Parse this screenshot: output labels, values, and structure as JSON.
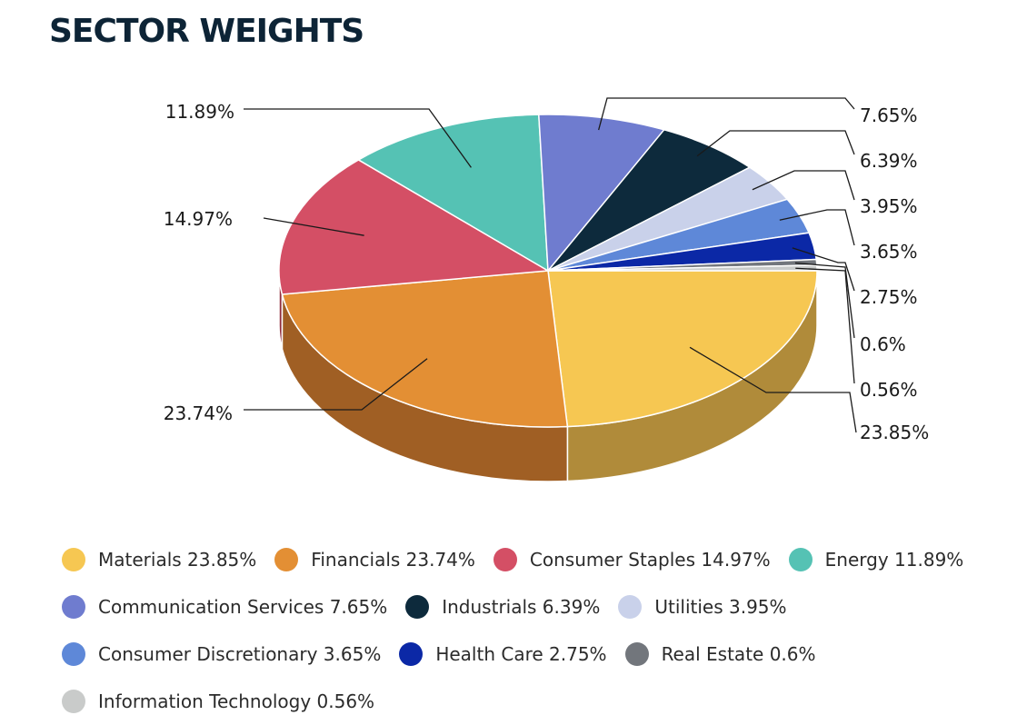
{
  "title": "SECTOR WEIGHTS",
  "chart_data": {
    "type": "pie",
    "title": "SECTOR WEIGHTS",
    "legend_position": "bottom",
    "slices": [
      {
        "name": "Materials",
        "value": 23.85,
        "label": "23.85%",
        "legend": "Materials 23.85%",
        "color": "#f6c752",
        "side_color": "#b08b3a"
      },
      {
        "name": "Financials",
        "value": 23.74,
        "label": "23.74%",
        "legend": "Financials 23.74%",
        "color": "#e38f34",
        "side_color": "#a05f24"
      },
      {
        "name": "Consumer Staples",
        "value": 14.97,
        "label": "14.97%",
        "legend": "Consumer Staples 14.97%",
        "color": "#d44f65",
        "side_color": "#92303f"
      },
      {
        "name": "Energy",
        "value": 11.89,
        "label": "11.89%",
        "legend": "Energy 11.89%",
        "color": "#55c2b4",
        "side_color": "#3a8a80"
      },
      {
        "name": "Communication Services",
        "value": 7.65,
        "label": "7.65%",
        "legend": "Communication Services 7.65%",
        "color": "#6f7ccf",
        "side_color": "#4b5596"
      },
      {
        "name": "Industrials",
        "value": 6.39,
        "label": "6.39%",
        "legend": "Industrials 6.39%",
        "color": "#0d2a3c",
        "side_color": "#081b27"
      },
      {
        "name": "Utilities",
        "value": 3.95,
        "label": "3.95%",
        "legend": "Utilities 3.95%",
        "color": "#c9d1ea",
        "side_color": "#9099b5"
      },
      {
        "name": "Consumer Discretionary",
        "value": 3.65,
        "label": "3.65%",
        "legend": "Consumer Discretionary 3.65%",
        "color": "#5e88d8",
        "side_color": "#3f5f9c"
      },
      {
        "name": "Health Care",
        "value": 2.75,
        "label": "2.75%",
        "legend": "Health Care 2.75%",
        "color": "#0b28a6",
        "side_color": "#071a70"
      },
      {
        "name": "Real Estate",
        "value": 0.6,
        "label": "0.6%",
        "legend": "Real Estate 0.6%",
        "color": "#72767c",
        "side_color": "#4f5256"
      },
      {
        "name": "Information Technology",
        "value": 0.56,
        "label": "0.56%",
        "legend": "Information Technology 0.56%",
        "color": "#c9cbca",
        "side_color": "#8e908f"
      }
    ]
  }
}
